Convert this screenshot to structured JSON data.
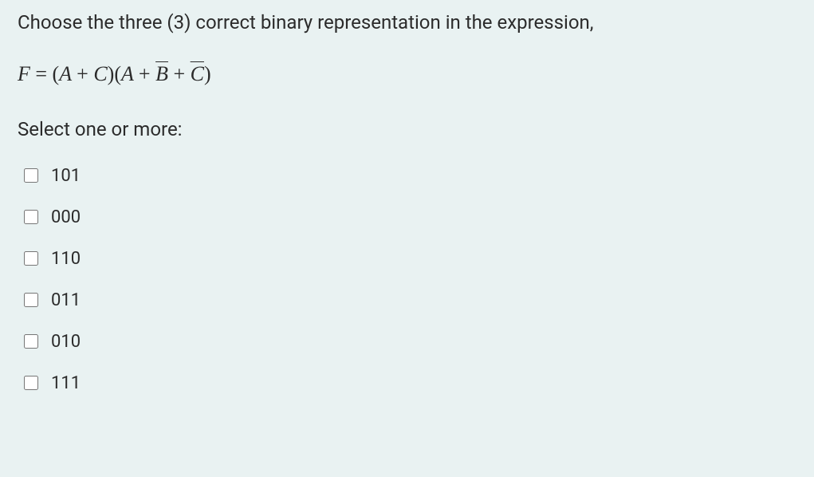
{
  "question": "Choose the three (3) correct binary representation in the expression,",
  "prompt": "Select one or more:",
  "options": [
    {
      "value": "101"
    },
    {
      "value": "000"
    },
    {
      "value": "110"
    },
    {
      "value": "011"
    },
    {
      "value": "010"
    },
    {
      "value": "111"
    }
  ],
  "colors": {
    "background": "#e9f2f2",
    "text": "#2b2b2b"
  },
  "typography": {
    "question_fontsize": 24,
    "formula_fontsize": 26,
    "option_fontsize": 22
  }
}
